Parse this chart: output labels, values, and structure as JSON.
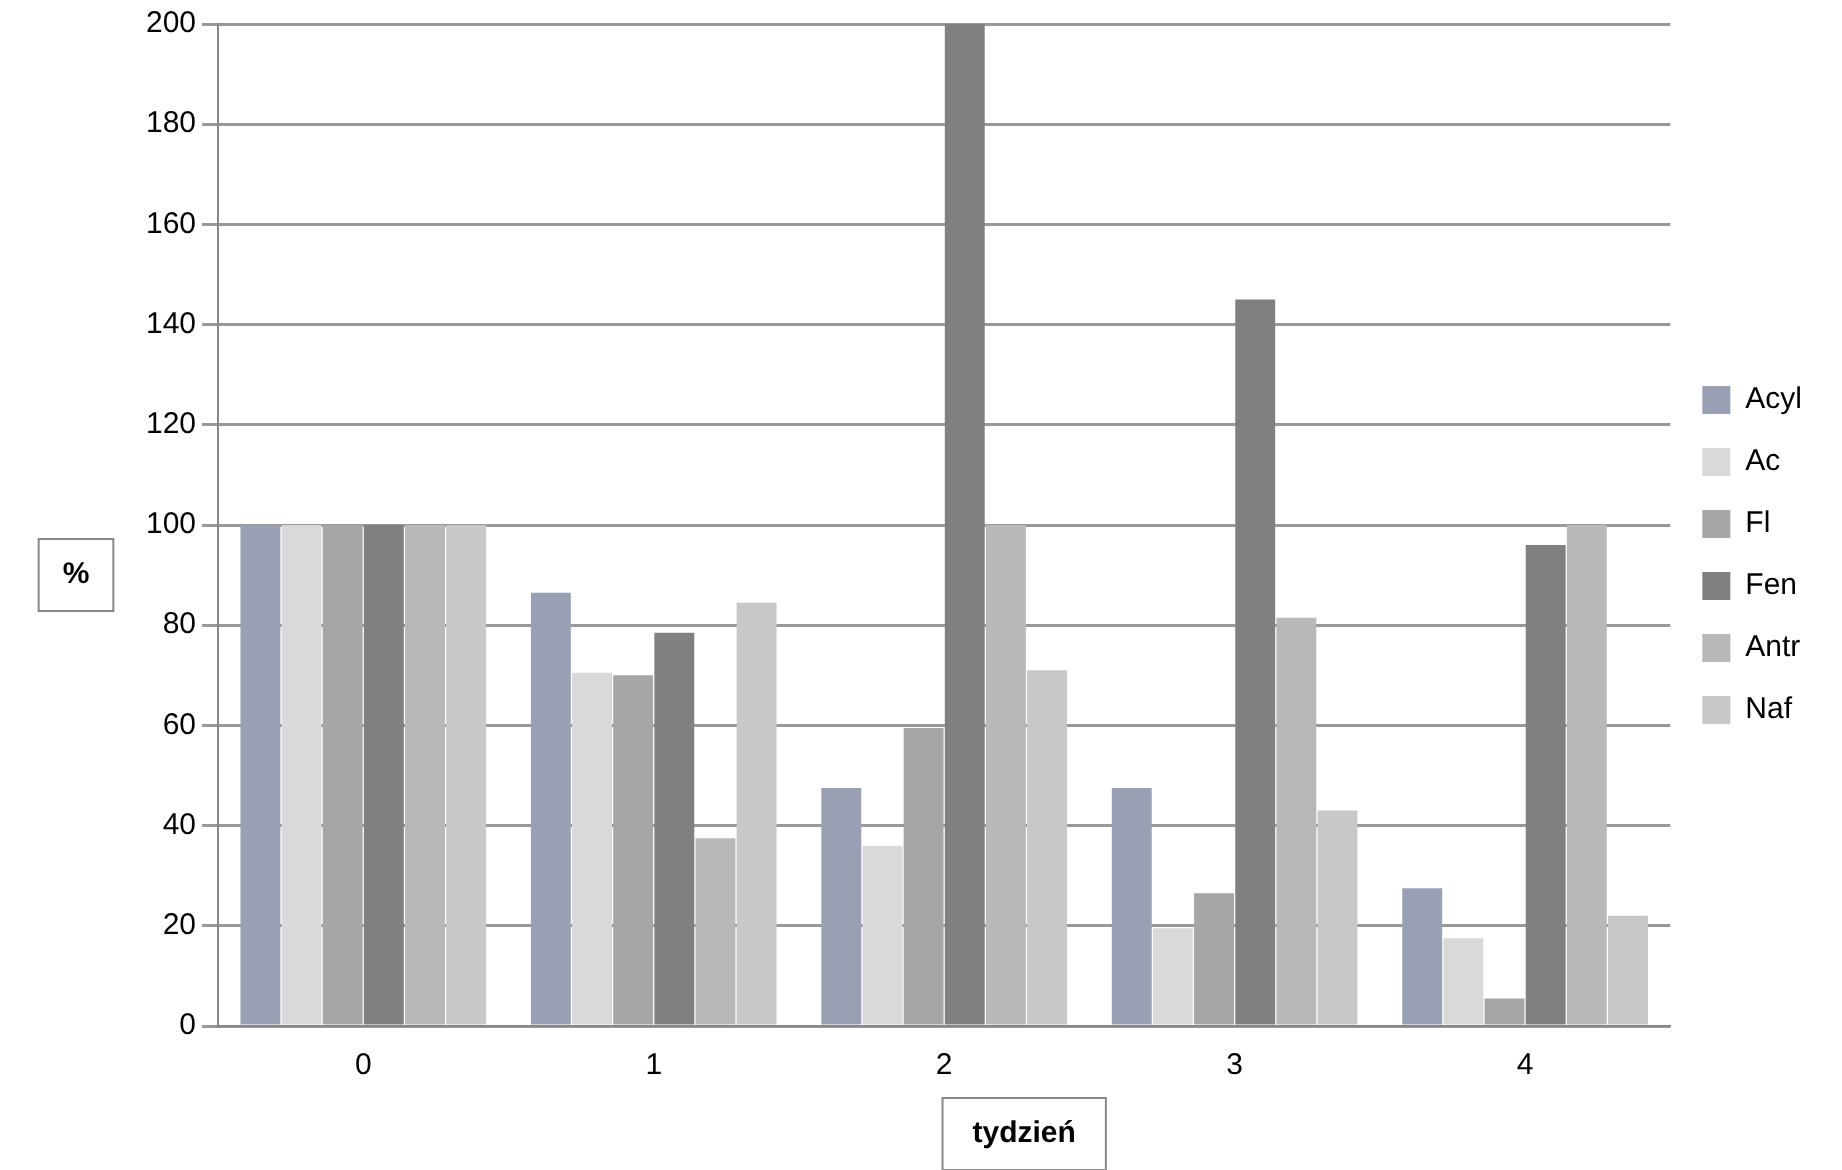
{
  "chart_data": {
    "type": "bar",
    "xlabel": "tydzień",
    "ylabel": "%",
    "categories": [
      "0",
      "1",
      "2",
      "3",
      "4"
    ],
    "series": [
      {
        "name": "Acyl",
        "color": "#9aa0b4",
        "values": [
          100,
          86.5,
          47.5,
          47.5,
          27.5
        ]
      },
      {
        "name": "Ac",
        "color": "#d9d9d9",
        "values": [
          100,
          70.5,
          36,
          19.5,
          17.5
        ]
      },
      {
        "name": "Fl",
        "color": "#a6a6a6",
        "values": [
          100,
          70,
          59.5,
          26.5,
          5.5
        ]
      },
      {
        "name": "Fen",
        "color": "#808080",
        "values": [
          100,
          78.5,
          200,
          145,
          96
        ]
      },
      {
        "name": "Antr",
        "color": "#b8b8b8",
        "values": [
          100,
          37.5,
          100,
          81.5,
          100
        ]
      },
      {
        "name": "Naf",
        "color": "#c8c8c8",
        "values": [
          100,
          84.5,
          71,
          43,
          22
        ]
      }
    ],
    "ylim": [
      0,
      200
    ],
    "yticks": [
      0,
      20,
      40,
      60,
      80,
      100,
      120,
      140,
      160,
      180,
      200
    ],
    "grid": "y",
    "legend": "right"
  }
}
